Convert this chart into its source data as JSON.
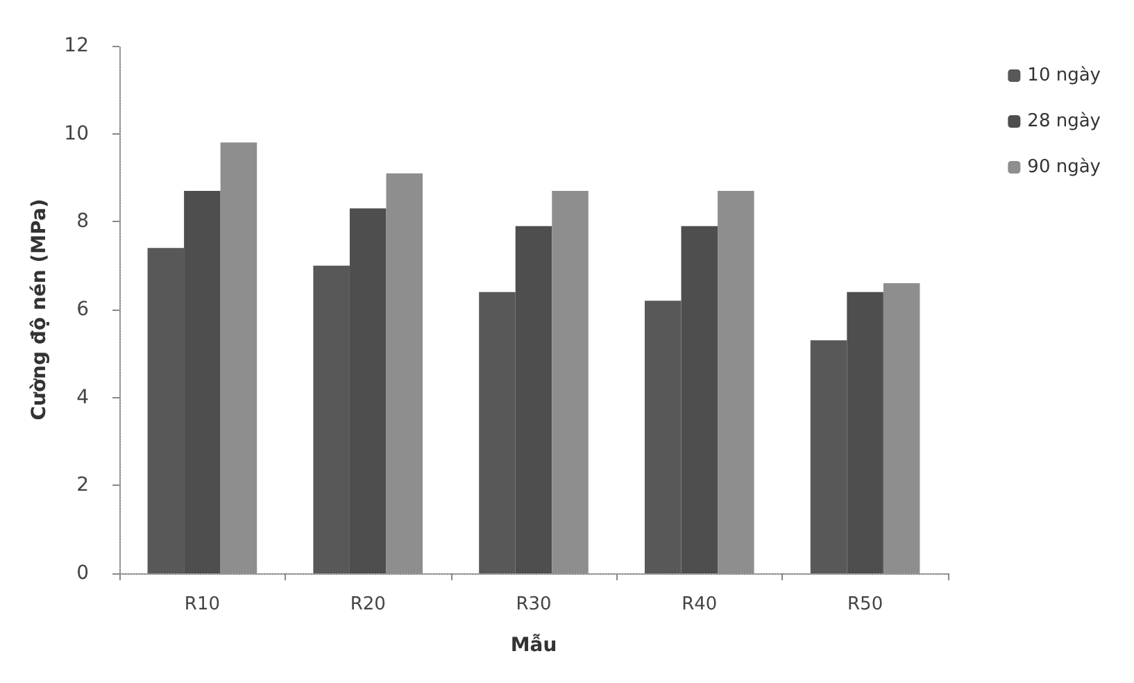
{
  "chart_data": {
    "type": "bar",
    "xlabel": "Mẫu",
    "ylabel": "Cường độ nén (MPa)",
    "categories": [
      "R10",
      "R20",
      "R30",
      "R40",
      "R50"
    ],
    "series": [
      {
        "name": "10 ngày",
        "color": "#585858",
        "values": [
          7.4,
          7.0,
          6.4,
          6.2,
          5.3
        ]
      },
      {
        "name": "28 ngày",
        "color": "#4e4e4e",
        "values": [
          8.7,
          8.3,
          7.9,
          7.9,
          6.4
        ]
      },
      {
        "name": "90 ngày",
        "color": "#8e8e8e",
        "values": [
          9.8,
          9.1,
          8.7,
          8.7,
          6.6
        ]
      }
    ],
    "ylim": [
      0,
      12
    ],
    "yticks": [
      0,
      2,
      4,
      6,
      8,
      10,
      12
    ],
    "grid": false,
    "legend": "right"
  }
}
